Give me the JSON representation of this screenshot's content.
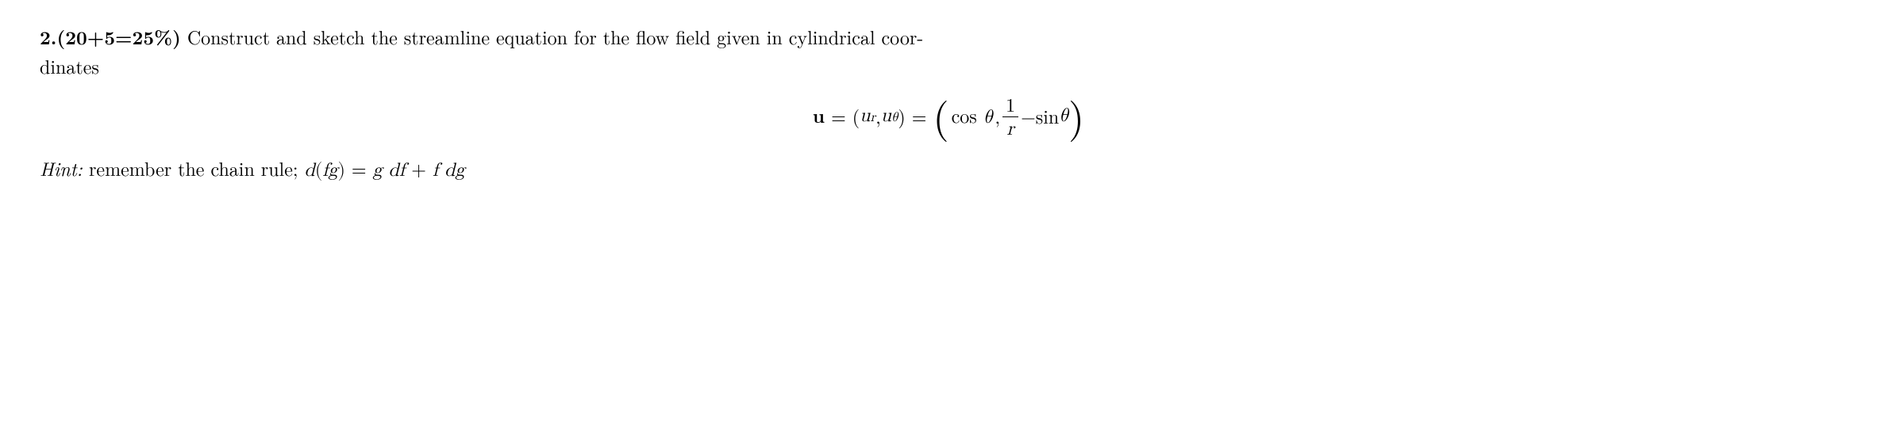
{
  "problem": {
    "number": "2.",
    "points": "(20+5=25%)",
    "text": " Construct and sketch the streamline equation for the flow field given in cylindrical coor-",
    "text_continued": "dinates"
  },
  "equation": {
    "lhs_vec": "u",
    "eq1": " = ",
    "comp_open": "(",
    "ur_var": "u",
    "ur_sub": "r",
    "comma1": ", ",
    "utheta_var": "u",
    "utheta_sub": "θ",
    "comp_close": ")",
    "eq2": " = ",
    "big_open": "(",
    "cos_fn": "cos",
    "theta1": " θ",
    "comma2": ", ",
    "frac_num": "1",
    "frac_den": "r",
    "minus": " − ",
    "sin_fn": "sin",
    "theta2": " θ",
    "big_close": ")"
  },
  "hint": {
    "label": "Hint:",
    "text": " remember the chain rule; ",
    "eq_d": "d",
    "eq_open": "(",
    "eq_f1": "f",
    "eq_g1": "g",
    "eq_close": ")",
    "eq_eq": " = ",
    "eq_g2": "g",
    "eq_sp1": " ",
    "eq_df": "df",
    "eq_plus": " + ",
    "eq_f2": "f",
    "eq_sp2": " ",
    "eq_dg": "dg"
  },
  "style": {
    "font_size_body": 24,
    "font_size_bigparen": 52,
    "color_text": "#000000",
    "color_bg": "#ffffff"
  }
}
